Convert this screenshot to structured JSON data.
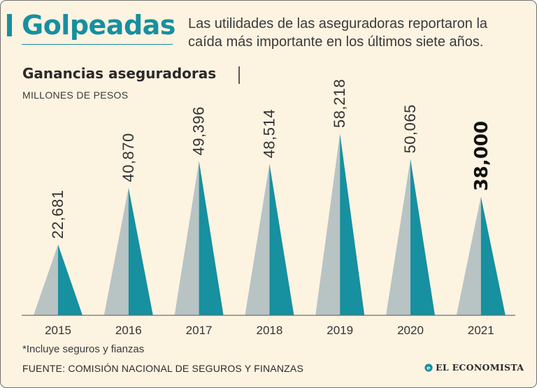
{
  "header": {
    "headline": "Golpeadas",
    "subtitle": "Las utilidades de las aseguradoras reportaron la caída más importante en los últimos siete años."
  },
  "chart_data": {
    "type": "bar",
    "title": "Ganancias aseguradoras",
    "ylabel": "MILLONES DE PESOS",
    "xlabel": "",
    "categories": [
      "2015",
      "2016",
      "2017",
      "2018",
      "2019",
      "2020",
      "2021"
    ],
    "values": [
      22681,
      40870,
      49396,
      48514,
      58218,
      50065,
      38000
    ],
    "value_labels": [
      "22,681",
      "40,870",
      "49,396",
      "48,514",
      "58,218",
      "50,065",
      "38,000"
    ],
    "highlight_index": 6,
    "ylim": [
      0,
      58218
    ],
    "grid": false
  },
  "footnote": "*Incluye seguros y fianzas",
  "source": "FUENTE: COMISIÓN NACIONAL DE SEGUROS Y FINANZAS",
  "brand": {
    "name": "EL ECONOMISTA",
    "icon": "brand-logo-icon"
  },
  "colors": {
    "background": "#fdf3e1",
    "accent": "#178f9f",
    "peak_light": "#b8c3c4",
    "peak_dark": "#17909f",
    "baseline": "#6f6f6f"
  }
}
